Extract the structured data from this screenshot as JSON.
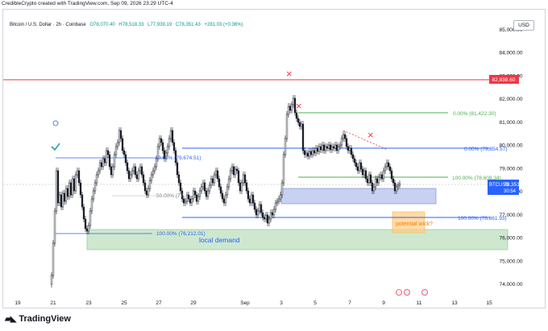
{
  "header": {
    "credit": "CredibleCrypto created with TradingView.com, Sep 09, 2026 23:29 UTC-4"
  },
  "symbol": {
    "name": "Bitcoin / U.S. Dollar · 2h · Coinbase",
    "open": "O78,070.40",
    "high": "H78,518.33",
    "low": "L77,939.19",
    "close": "C78,351.43",
    "change": "+281.03 (+0.36%)"
  },
  "currency_button": "USD",
  "price_axis": {
    "ticks": [
      "85,000.00",
      "84,000.00",
      "83,000.00",
      "82,000.00",
      "81,000.00",
      "80,000.00",
      "79,000.00",
      "78,000.00",
      "77,000.00",
      "76,000.00",
      "75,000.00",
      "74,000.00"
    ],
    "tick_values": [
      85000,
      84000,
      83000,
      82000,
      81000,
      80000,
      79000,
      78000,
      77000,
      76000,
      75000,
      74000
    ],
    "red_line_label": "82,838.60",
    "red_line_value": 82838.6,
    "ticker_label": "BTCUSD",
    "current_price": "78,351.43",
    "countdown": "30:54"
  },
  "time_axis": {
    "labels": [
      "19",
      "21",
      "23",
      "25",
      "27",
      "29",
      "Sep",
      "3",
      "5",
      "7",
      "9",
      "11",
      "13",
      "15"
    ]
  },
  "annotations": {
    "fib_top": "0.00% (81,422.30)",
    "fib_upper_mid": "0.00% (79,854.57)",
    "fib_right_100": "100.00% (78,608.34)",
    "fib_left_0": "0.00% (79,674.51)",
    "fib_left_50": "50.00% (77,",
    "fib_left_100": "100.00% (76,212.01)",
    "fib_lower_100": "100.00% (76,861.93)",
    "local_demand": "local demand",
    "potential_wick": "potential wick?",
    "cross_marks": [
      "×",
      "×",
      "×"
    ]
  },
  "colors": {
    "red_line": "#f23645",
    "blue_line": "#2962ff",
    "green_line": "#4caf50",
    "demand_zone": "#a5d6a7",
    "blue_zone": "#90a4e6",
    "orange_zone": "#ffcc80",
    "candle": "#131722"
  },
  "footer": {
    "brand": "TradingView"
  }
}
